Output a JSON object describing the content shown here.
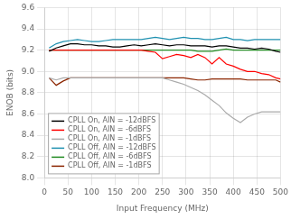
{
  "chart_data": {
    "type": "line",
    "xlabel": "Input Frequency (MHz)",
    "ylabel": "ENOB (bits)",
    "xlim": [
      0,
      500
    ],
    "ylim": [
      8.0,
      9.6
    ],
    "xticks": [
      0,
      50,
      100,
      150,
      200,
      250,
      300,
      350,
      400,
      450,
      500
    ],
    "yticks": [
      {
        "value": 8.0,
        "label": "8.0"
      },
      8.2,
      8.4,
      8.6,
      8.8,
      {
        "value": 9.0,
        "label": "9.0"
      },
      9.2,
      9.4,
      9.6
    ],
    "grid": true,
    "legend": "lower left",
    "x": [
      10,
      25,
      40,
      55,
      70,
      85,
      100,
      115,
      130,
      145,
      160,
      175,
      190,
      205,
      220,
      235,
      250,
      265,
      280,
      295,
      310,
      325,
      340,
      355,
      370,
      385,
      400,
      415,
      430,
      445,
      460,
      475,
      490,
      500
    ],
    "series": [
      {
        "name": "CPLL On, AIN = -12dBFS",
        "color": "#000000",
        "values": [
          9.19,
          9.22,
          9.24,
          9.26,
          9.26,
          9.25,
          9.25,
          9.24,
          9.24,
          9.23,
          9.23,
          9.24,
          9.25,
          9.24,
          9.25,
          9.26,
          9.25,
          9.24,
          9.25,
          9.25,
          9.24,
          9.24,
          9.24,
          9.23,
          9.24,
          9.24,
          9.23,
          9.22,
          9.22,
          9.21,
          9.22,
          9.21,
          9.19,
          9.18
        ]
      },
      {
        "name": "CPLL On, AIN = -6dBFS",
        "color": "#ff0000",
        "values": [
          9.2,
          9.2,
          9.2,
          9.2,
          9.2,
          9.2,
          9.2,
          9.2,
          9.2,
          9.2,
          9.2,
          9.2,
          9.2,
          9.2,
          9.19,
          9.18,
          9.12,
          9.14,
          9.16,
          9.15,
          9.13,
          9.16,
          9.13,
          9.07,
          9.13,
          9.07,
          9.05,
          9.02,
          9.0,
          9.0,
          8.98,
          8.97,
          8.94,
          8.93
        ]
      },
      {
        "name": "CPLL On, AIN = -1dBFS",
        "color": "#aaaaaa",
        "values": [
          8.94,
          8.92,
          8.94,
          8.94,
          8.94,
          8.94,
          8.94,
          8.94,
          8.94,
          8.94,
          8.94,
          8.94,
          8.94,
          8.94,
          8.94,
          8.94,
          8.94,
          8.92,
          8.9,
          8.88,
          8.85,
          8.82,
          8.78,
          8.73,
          8.68,
          8.61,
          8.56,
          8.52,
          8.57,
          8.6,
          8.62,
          8.62,
          8.62,
          8.62
        ]
      },
      {
        "name": "CPLL Off, AIN = -12dBFS",
        "color": "#1e90b0",
        "values": [
          9.22,
          9.26,
          9.28,
          9.29,
          9.3,
          9.29,
          9.28,
          9.28,
          9.29,
          9.3,
          9.3,
          9.3,
          9.3,
          9.3,
          9.31,
          9.32,
          9.31,
          9.3,
          9.31,
          9.32,
          9.31,
          9.31,
          9.3,
          9.3,
          9.31,
          9.32,
          9.3,
          9.3,
          9.29,
          9.3,
          9.3,
          9.3,
          9.3,
          9.3
        ]
      },
      {
        "name": "CPLL Off, AIN = -6dBFS",
        "color": "#228B22",
        "values": [
          9.2,
          9.2,
          9.2,
          9.2,
          9.2,
          9.2,
          9.2,
          9.2,
          9.2,
          9.2,
          9.2,
          9.2,
          9.2,
          9.2,
          9.2,
          9.2,
          9.2,
          9.2,
          9.2,
          9.2,
          9.2,
          9.19,
          9.19,
          9.19,
          9.2,
          9.21,
          9.2,
          9.2,
          9.2,
          9.2,
          9.2,
          9.2,
          9.2,
          9.2
        ]
      },
      {
        "name": "CPLL Off, AIN = -1dBFS",
        "color": "#8B2500",
        "values": [
          8.94,
          8.87,
          8.91,
          8.94,
          8.94,
          8.94,
          8.94,
          8.94,
          8.94,
          8.94,
          8.94,
          8.94,
          8.94,
          8.94,
          8.94,
          8.94,
          8.94,
          8.94,
          8.94,
          8.94,
          8.93,
          8.92,
          8.92,
          8.93,
          8.93,
          8.93,
          8.93,
          8.93,
          8.92,
          8.92,
          8.92,
          8.92,
          8.92,
          8.9
        ]
      }
    ]
  }
}
